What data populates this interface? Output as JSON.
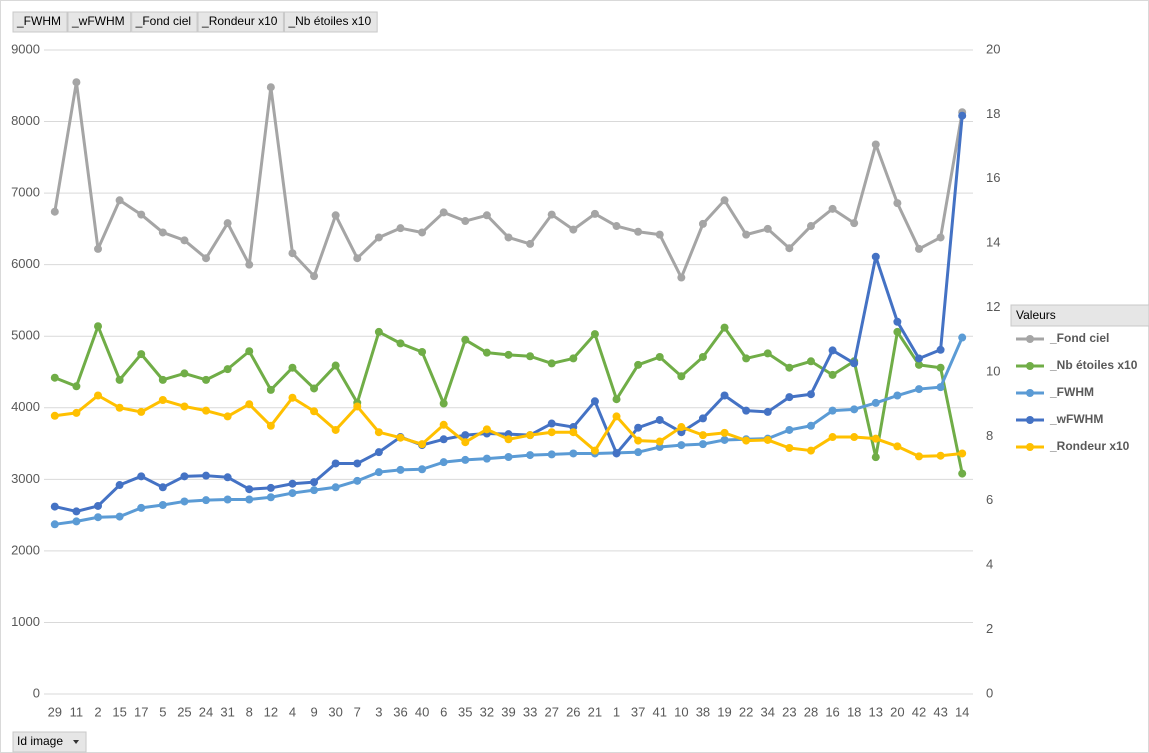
{
  "chart_data": {
    "type": "line",
    "field_buttons": [
      "_FWHM",
      "_wFWHM",
      "_Fond ciel",
      "_Rondeur x10",
      "_Nb étoiles x10"
    ],
    "axis_field_button": "Id image",
    "legend_title": "Valeurs",
    "legend": "right",
    "grid": true,
    "categories": [
      "29",
      "11",
      "2",
      "15",
      "17",
      "5",
      "25",
      "24",
      "31",
      "8",
      "12",
      "4",
      "9",
      "30",
      "7",
      "3",
      "36",
      "40",
      "6",
      "35",
      "32",
      "39",
      "33",
      "27",
      "26",
      "21",
      "1",
      "37",
      "41",
      "10",
      "38",
      "19",
      "22",
      "34",
      "23",
      "28",
      "16",
      "18",
      "13",
      "20",
      "42",
      "43",
      "14"
    ],
    "ylim": [
      0,
      9000
    ],
    "yticks": [
      0,
      1000,
      2000,
      3000,
      4000,
      5000,
      6000,
      7000,
      8000,
      9000
    ],
    "y2lim": [
      0,
      20
    ],
    "y2ticks": [
      0,
      2,
      4,
      6,
      8,
      10,
      12,
      14,
      16,
      18,
      20
    ],
    "series": [
      {
        "name": "_Fond ciel",
        "color": "#a5a5a5",
        "values": [
          6740,
          8550,
          6220,
          6900,
          6700,
          6450,
          6340,
          6090,
          6580,
          6000,
          8480,
          6160,
          5840,
          6690,
          6090,
          6380,
          6510,
          6450,
          6730,
          6610,
          6690,
          6380,
          6290,
          6700,
          6490,
          6710,
          6540,
          6460,
          6420,
          5820,
          6570,
          6900,
          6420,
          6500,
          6230,
          6540,
          6780,
          6580,
          7680,
          6860,
          6220,
          6380,
          8130
        ]
      },
      {
        "name": "_Nb étoiles x10",
        "color": "#70ad47",
        "values": [
          4420,
          4300,
          5140,
          4390,
          4750,
          4390,
          4480,
          4390,
          4540,
          4790,
          4250,
          4560,
          4270,
          4590,
          4070,
          5060,
          4900,
          4780,
          4060,
          4950,
          4770,
          4740,
          4720,
          4620,
          4690,
          5030,
          4120,
          4600,
          4710,
          4440,
          4710,
          5120,
          4690,
          4760,
          4560,
          4650,
          4460,
          4650,
          3310,
          5060,
          4600,
          4560,
          3080
        ]
      },
      {
        "name": "_FWHM",
        "color": "#5b9bd5",
        "axis": "y2",
        "values": [
          5.27,
          5.36,
          5.49,
          5.51,
          5.78,
          5.87,
          5.98,
          6.02,
          6.04,
          6.04,
          6.11,
          6.24,
          6.33,
          6.42,
          6.62,
          6.89,
          6.96,
          6.98,
          7.2,
          7.27,
          7.31,
          7.36,
          7.42,
          7.44,
          7.47,
          7.47,
          7.49,
          7.51,
          7.67,
          7.73,
          7.76,
          7.89,
          7.91,
          7.93,
          8.2,
          8.33,
          8.8,
          8.84,
          9.04,
          9.27,
          9.47,
          9.53,
          11.07
        ]
      },
      {
        "name": "_wFWHM",
        "color": "#4472c4",
        "axis": "y2",
        "values": [
          5.82,
          5.67,
          5.84,
          6.49,
          6.76,
          6.42,
          6.76,
          6.78,
          6.73,
          6.36,
          6.4,
          6.53,
          6.58,
          7.16,
          7.16,
          7.51,
          7.98,
          7.73,
          7.91,
          8.04,
          8.09,
          8.07,
          8.04,
          8.4,
          8.29,
          9.09,
          7.47,
          8.27,
          8.51,
          8.13,
          8.56,
          9.27,
          8.8,
          8.76,
          9.22,
          9.31,
          10.67,
          10.27,
          13.58,
          11.56,
          10.42,
          10.69,
          17.96
        ]
      },
      {
        "name": "_Rondeur x10",
        "color": "#ffc000",
        "axis": "y2",
        "values": [
          8.64,
          8.73,
          9.27,
          8.89,
          8.76,
          9.13,
          8.93,
          8.8,
          8.62,
          9.0,
          8.33,
          9.2,
          8.78,
          8.2,
          8.93,
          8.13,
          7.96,
          7.76,
          8.36,
          7.82,
          8.22,
          7.91,
          8.04,
          8.13,
          8.13,
          7.56,
          8.62,
          7.87,
          7.84,
          8.29,
          8.04,
          8.11,
          7.87,
          7.89,
          7.64,
          7.56,
          7.98,
          7.98,
          7.93,
          7.69,
          7.38,
          7.4,
          7.47
        ]
      }
    ]
  }
}
